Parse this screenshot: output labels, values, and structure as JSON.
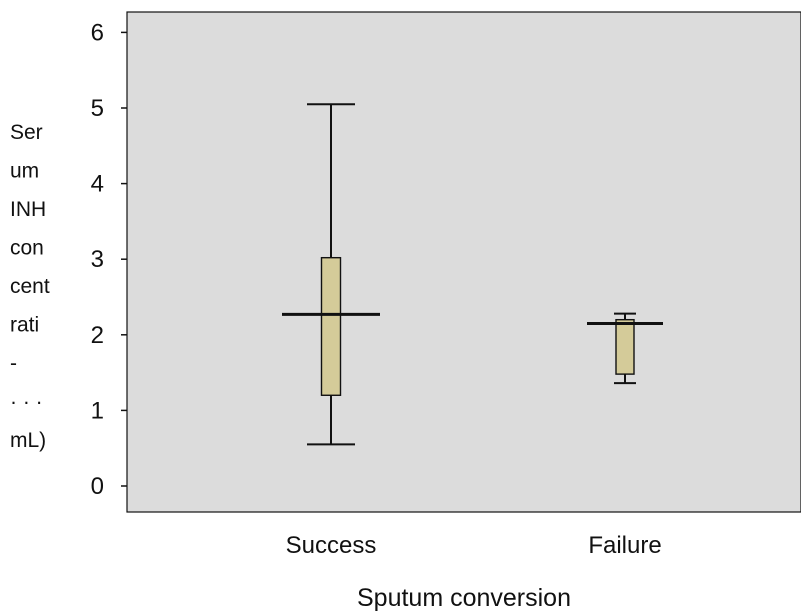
{
  "chart_data": {
    "type": "box",
    "title": "",
    "xlabel": "Sputum conversion",
    "ylabel_lines": [
      "Ser",
      "um",
      "INH",
      "con",
      "cent",
      "rati",
      "-",
      "· ·  ·",
      "mL)"
    ],
    "ylim": [
      -0.3,
      6.4
    ],
    "yticks": [
      0,
      1,
      2,
      3,
      4,
      5,
      6
    ],
    "categories": [
      "Success",
      "Failure"
    ],
    "boxes": [
      {
        "category": "Success",
        "min": 0.55,
        "q1": 1.2,
        "median": 2.27,
        "q3": 3.02,
        "max": 5.05
      },
      {
        "category": "Failure",
        "min": 1.36,
        "q1": 1.48,
        "median": 2.15,
        "q3": 2.2,
        "max": 2.28
      }
    ],
    "grid": false,
    "colors": {
      "plot_background": "#dcdcdc",
      "box_fill": "#d4cb99",
      "stroke": "#111111"
    }
  }
}
